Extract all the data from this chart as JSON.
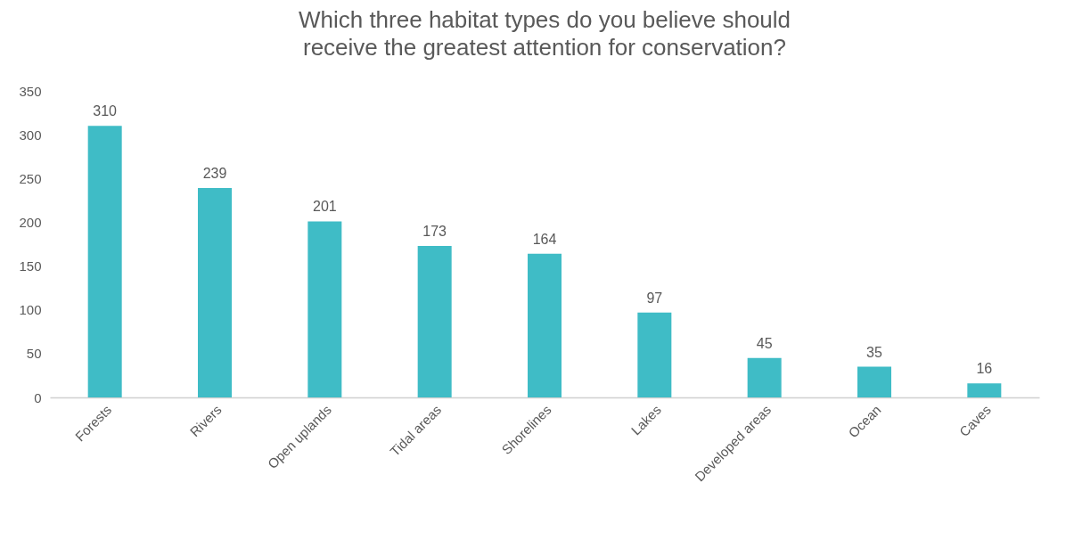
{
  "chart_data": {
    "type": "bar",
    "title": "Which three habitat types do you believe should receive the greatest attention for conservation?",
    "categories": [
      "Forests",
      "Rivers",
      "Open uplands",
      "Tidal areas",
      "Shorelines",
      "Lakes",
      "Developed areas",
      "Ocean",
      "Caves"
    ],
    "values": [
      310,
      239,
      201,
      173,
      164,
      97,
      45,
      35,
      16
    ],
    "color": "#3fbcc6",
    "ylim": [
      0,
      350
    ],
    "yticks": [
      0,
      50,
      100,
      150,
      200,
      250,
      300,
      350
    ],
    "grid": false,
    "data_labels": true
  }
}
